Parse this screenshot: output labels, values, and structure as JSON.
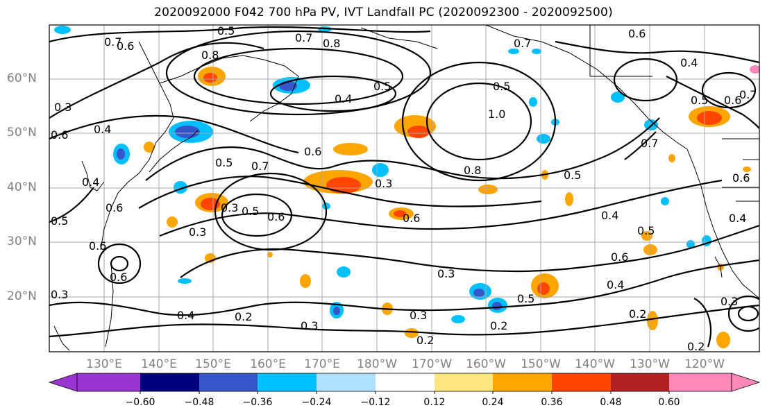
{
  "title": "2020092000 F042 700 hPa PV, IVT Landfall PC (2020092300 - 2020092500)",
  "lat_labels": [
    "60°N",
    "50°N",
    "40°N",
    "30°N",
    "20°N"
  ],
  "lon_labels": [
    "130°E",
    "140°E",
    "150°E",
    "160°E",
    "170°E",
    "180°W",
    "170°W",
    "160°W",
    "150°W",
    "140°W",
    "130°W",
    "120°W"
  ],
  "colorbar": {
    "tick_labels": [
      "−0.60",
      "−0.48",
      "−0.36",
      "−0.24",
      "−0.12",
      "0.12",
      "0.24",
      "0.36",
      "0.48",
      "0.60"
    ],
    "colors": [
      "#9b35d2",
      "#00007f",
      "#3557c9",
      "#00bfff",
      "#b0e2ff",
      "#ffffff",
      "#ffe680",
      "#ffa500",
      "#ff4500",
      "#b22222",
      "#ff88bb"
    ]
  },
  "contour_labels": [
    "0.5",
    "0.7",
    "0.6",
    "0.7",
    "0.8",
    "0.6",
    "0.4",
    "0.5",
    "0.7",
    "0.8",
    "0.4",
    "0.3",
    "0.4",
    "0.6",
    "0.5",
    "0.7",
    "0.6",
    "1.0",
    "0.8",
    "0.5",
    "0.4",
    "0.5",
    "0.6",
    "0.3",
    "0.4",
    "0.2",
    "0.3",
    "0.3",
    "0.5",
    "0.2",
    "0.2",
    "0.3",
    "0.2",
    "0.3",
    "0.4",
    "0.5",
    "0.6",
    "0.4",
    "0.5",
    "0.6",
    "0.6",
    "0.7",
    "0.6",
    "0.3",
    "0.6",
    "0.7",
    "0.5",
    "0.6",
    "0.5",
    "0.3",
    "0.4",
    "0.6",
    "0.3",
    "0.2"
  ],
  "colors": {
    "contour": "#000000",
    "grid": "#a0a0a0",
    "coast": "#000000",
    "axis_label": "#808080"
  }
}
